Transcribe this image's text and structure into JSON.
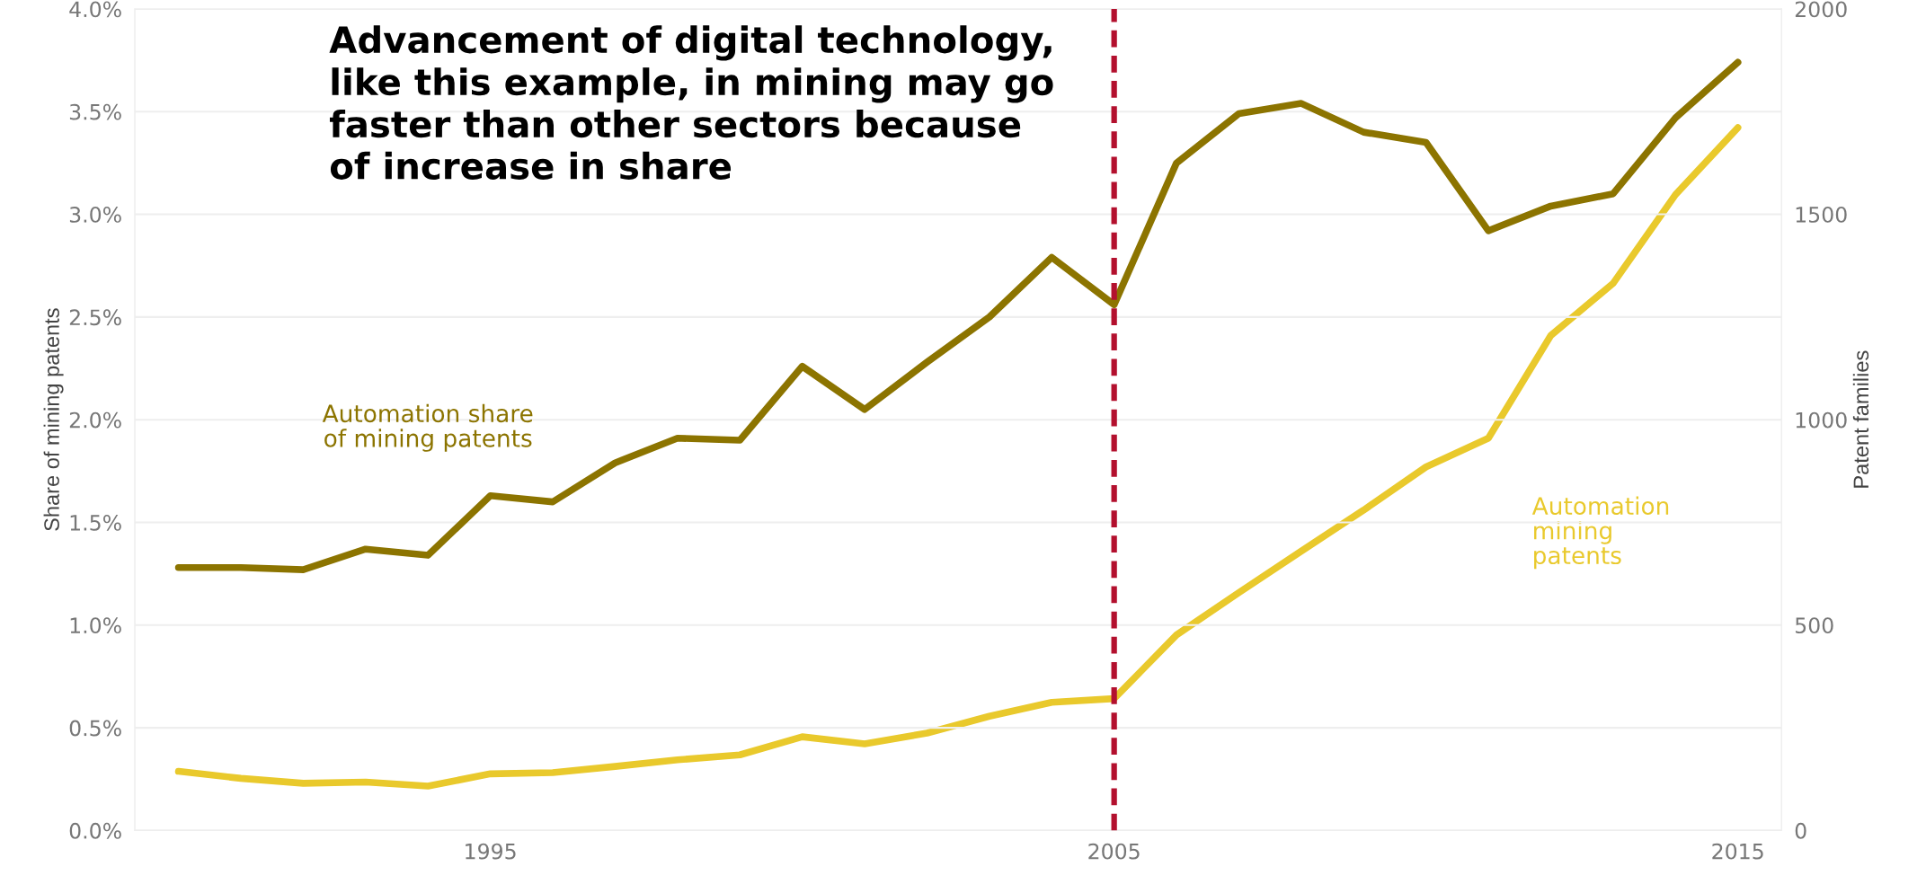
{
  "chart_data": {
    "type": "line",
    "x": [
      1990,
      1991,
      1992,
      1993,
      1994,
      1995,
      1996,
      1997,
      1998,
      1999,
      2000,
      2001,
      2002,
      2003,
      2004,
      2005,
      2006,
      2007,
      2008,
      2009,
      2010,
      2011,
      2012,
      2013,
      2014,
      2015
    ],
    "ylabel": "Share of mining patents",
    "y2label": "Patent families",
    "annotations": [
      "Advancement of digital technology,\nlike this example, in mining may go\nfaster than other sectors because\nof increase in share"
    ],
    "series": [
      {
        "name": "Automation share\nof mining patents",
        "color": "#8c7400",
        "values": [
          1.28,
          1.28,
          1.27,
          1.37,
          1.34,
          1.63,
          1.6,
          1.79,
          1.91,
          1.9,
          2.26,
          2.05,
          2.28,
          2.5,
          2.79,
          2.56,
          3.25,
          3.49,
          3.54,
          3.4,
          3.35,
          2.92,
          3.04,
          3.1,
          3.47,
          3.74
        ]
      },
      {
        "name": "Automation\nmining\npatents",
        "color": "#e9c92c",
        "axis": "y2",
        "values": [
          144,
          127,
          115,
          118,
          108,
          138,
          141,
          156,
          172,
          184,
          228,
          211,
          237,
          278,
          312,
          321,
          476,
          579,
          680,
          780,
          885,
          955,
          1205,
          1332,
          1548,
          1711
        ]
      }
    ],
    "xlim": [
      1989.3,
      2015.7
    ],
    "xticks": [
      1995,
      2005,
      2015
    ],
    "ylim": [
      0,
      4
    ],
    "yticks": [
      {
        "value": 0,
        "label": "0.0%"
      },
      {
        "value": 0.5,
        "label": "0.5%"
      },
      {
        "value": 1,
        "label": "1.0%"
      },
      {
        "value": 1.5,
        "label": "1.5%"
      },
      {
        "value": 2,
        "label": "2.0%"
      },
      {
        "value": 2.5,
        "label": "2.5%"
      },
      {
        "value": 3,
        "label": "3.0%"
      },
      {
        "value": 3.5,
        "label": "3.5%"
      },
      {
        "value": 4,
        "label": "4.0%"
      }
    ],
    "y2lim": [
      0,
      2000
    ],
    "y2ticks": [
      0,
      500,
      1000,
      1500,
      2000
    ],
    "ref_lines": [
      {
        "axis": "x",
        "value": 2005,
        "color": "#b3102e",
        "line_style": "dashed"
      }
    ],
    "grid": "y",
    "legend": false
  }
}
